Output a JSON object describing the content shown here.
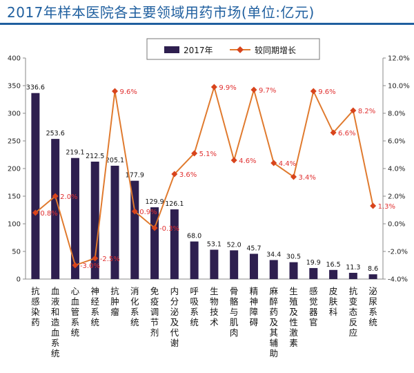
{
  "chart_data": {
    "type": "bar",
    "title": "2017年样本医院各主要领域用药市场(单位:亿元)",
    "categories": [
      "抗感染药",
      "血液和造血系统",
      "心血管系统",
      "神经系统",
      "抗肿瘤",
      "消化系统",
      "免疫调节剂",
      "内分泌及代谢",
      "呼吸系统",
      "生物技术",
      "骨骼与肌肉",
      "精神障碍",
      "麻醉药及其辅助",
      "生殖及性激素",
      "感觉器官",
      "皮肤科",
      "抗变态反应",
      "泌尿系统"
    ],
    "series": [
      {
        "name": "2017年",
        "type": "bar",
        "axis": "left",
        "values": [
          336.6,
          253.6,
          219.1,
          212.5,
          205.1,
          177.9,
          129.9,
          126.1,
          68.0,
          53.1,
          52.0,
          45.7,
          34.4,
          30.5,
          19.9,
          16.5,
          11.3,
          8.6
        ],
        "labels": [
          "336.6",
          "253.6",
          "219.1",
          "212.5",
          "205.1",
          "177.9",
          "129.9",
          "126.1",
          "68.0",
          "53.1",
          "52.0",
          "45.7",
          "34.4",
          "30.5",
          "19.9",
          "16.5",
          "11.3",
          "8.6"
        ]
      },
      {
        "name": "较同期增长",
        "type": "line",
        "axis": "right",
        "values": [
          0.8,
          2.0,
          -3.0,
          -2.5,
          9.6,
          0.9,
          -0.3,
          3.6,
          5.1,
          9.9,
          4.6,
          9.7,
          4.4,
          3.4,
          9.6,
          6.6,
          8.2,
          1.3
        ],
        "labels": [
          "0.8%",
          "2.0%",
          "-3.0%",
          "-2.5%",
          "9.6%",
          "0.9%",
          "-0.3%",
          "3.6%",
          "5.1%",
          "9.9%",
          "4.6%",
          "9.7%",
          "4.4%",
          "3.4%",
          "9.6%",
          "6.6%",
          "8.2%",
          "1.3%"
        ]
      }
    ],
    "ylim_left": [
      0,
      400
    ],
    "yticks_left": [
      "0",
      "50",
      "100",
      "150",
      "200",
      "250",
      "300",
      "350",
      "400"
    ],
    "ylim_right": [
      -4.0,
      12.0
    ],
    "yticks_right": [
      "-4.0%",
      "-2.0%",
      "0.0%",
      "2.0%",
      "4.0%",
      "6.0%",
      "8.0%",
      "10.0%",
      "12.0%"
    ],
    "legend_position": "top-center",
    "colors": {
      "bar": "#2e1f4f",
      "line": "#e07a2e",
      "marker": "#d8441c",
      "label": "#e03030",
      "title": "#1f5f9f"
    }
  }
}
